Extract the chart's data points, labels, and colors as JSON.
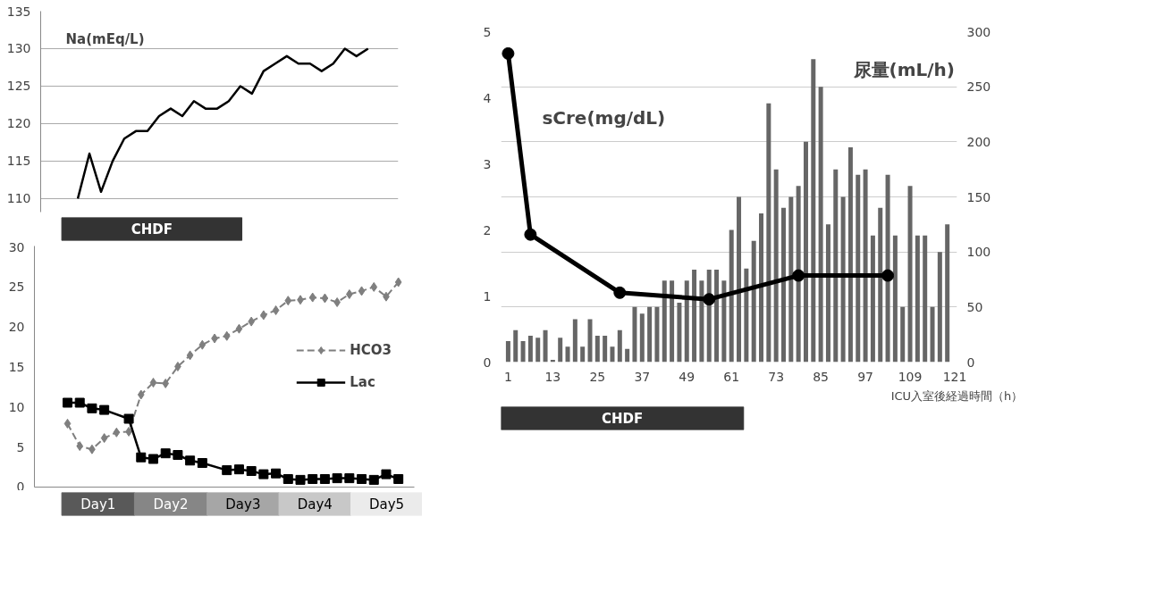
{
  "chart_data": [
    {
      "type": "line",
      "title": "Na(mEq/L)",
      "categories": [
        null,
        null,
        null,
        null,
        null,
        null,
        null,
        null,
        null,
        null,
        null,
        null,
        null,
        null,
        null,
        null,
        null,
        null,
        null,
        null,
        null,
        null,
        null,
        null,
        null,
        null
      ],
      "ylim": [
        108.2,
        135
      ],
      "yticks": [
        110,
        115,
        120,
        125,
        130,
        135
      ],
      "tick_labels": "y",
      "grid": "y",
      "series": [
        {
          "color": "#000000",
          "values": [
            110,
            116,
            110.9,
            115,
            118,
            119,
            119,
            121,
            122,
            121,
            123,
            122,
            122,
            123,
            125,
            124,
            127,
            128,
            129,
            128,
            128,
            127,
            128,
            130,
            129,
            130
          ]
        }
      ]
    },
    {
      "type": "line",
      "categories": [
        null,
        null,
        null,
        null,
        null,
        null,
        null,
        null,
        null,
        null,
        null,
        null,
        null,
        null,
        null,
        null,
        null,
        null,
        null,
        null,
        null,
        null,
        null,
        null,
        null,
        null,
        null,
        null
      ],
      "ylim": [
        0,
        30
      ],
      "yticks": [
        0,
        5,
        10,
        15,
        20,
        25,
        30
      ],
      "tick_labels": "y",
      "legend": "right",
      "series": [
        {
          "name": "HCO3",
          "color": "#7f7f7f",
          "marker": "diamond",
          "line_style": "dashed",
          "values": [
            7.9,
            5.1,
            4.7,
            6.1,
            6.8,
            6.9,
            11.5,
            13.0,
            12.9,
            15.0,
            16.4,
            17.7,
            18.5,
            18.8,
            19.7,
            20.6,
            21.4,
            22.0,
            23.2,
            23.3,
            23.6,
            23.5,
            23.0,
            24.0,
            24.4,
            24.9,
            23.7,
            25.5
          ]
        },
        {
          "name": "Lac",
          "color": "#000000",
          "marker": "square",
          "line_style": "solid",
          "values": [
            10.5,
            10.5,
            9.8,
            9.6,
            null,
            8.5,
            3.7,
            3.5,
            4.2,
            4.0,
            3.3,
            3.0,
            null,
            2.1,
            2.2,
            2.0,
            1.6,
            1.7,
            1.0,
            0.9,
            1.0,
            1.0,
            1.1,
            1.1,
            1.0,
            0.9,
            1.6,
            1.0
          ]
        }
      ],
      "annotations": [
        "CHDF",
        "Day1",
        "Day2",
        "Day3",
        "Day4",
        "Day5"
      ]
    },
    {
      "type": "line",
      "xlabel": "ICU入室後経過時間（h）",
      "xlim": [
        -0.9,
        121.6
      ],
      "xticks": [
        1,
        13,
        25,
        37,
        49,
        61,
        73,
        85,
        97,
        109,
        121
      ],
      "ylim": [
        0,
        5
      ],
      "yticks": [
        0,
        1,
        2,
        3,
        4,
        5
      ],
      "y2lim": [
        0,
        300
      ],
      "y2ticks": [
        0,
        50,
        100,
        150,
        200,
        250,
        300
      ],
      "grid": "y",
      "series": [
        {
          "name": "尿量(mL/h)",
          "type": "bar",
          "axis": "y2",
          "color": "#666666",
          "x": [
            1,
            3,
            5,
            7,
            9,
            11,
            13,
            15,
            17,
            19,
            21,
            23,
            25,
            27,
            29,
            31,
            33,
            35,
            37,
            39,
            41,
            43,
            45,
            47,
            49,
            51,
            53,
            55,
            57,
            59,
            61,
            63,
            65,
            67,
            69,
            71,
            73,
            75,
            77,
            79,
            81,
            83,
            85,
            87,
            89,
            91,
            93,
            95,
            97,
            99,
            101,
            103,
            105,
            107,
            109,
            111,
            113,
            115,
            117,
            119
          ],
          "values": [
            19,
            29,
            19,
            24,
            22,
            29,
            2,
            22,
            14,
            39,
            14,
            39,
            24,
            24,
            14,
            29,
            12,
            50,
            44,
            50,
            50,
            74,
            74,
            54,
            74,
            84,
            74,
            84,
            84,
            74,
            120,
            150,
            85,
            110,
            135,
            235,
            175,
            140,
            150,
            160,
            200,
            275,
            250,
            125,
            175,
            150,
            195,
            170,
            175,
            115,
            140,
            170,
            115,
            50,
            160,
            115,
            115,
            50,
            100,
            125
          ]
        },
        {
          "name": "sCre(mg/dL)",
          "type": "line",
          "color": "#000000",
          "marker": "circle",
          "x": [
            1,
            7,
            31,
            55,
            79,
            103
          ],
          "values": [
            4.67,
            1.93,
            1.05,
            0.95,
            1.31,
            1.31
          ]
        }
      ],
      "annotations": [
        "CHDF"
      ]
    }
  ]
}
